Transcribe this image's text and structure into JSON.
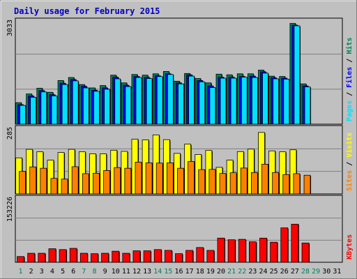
{
  "chart_data": [
    {
      "type": "bar",
      "title": "Daily usage for February 2015",
      "categories": [
        "1",
        "2",
        "3",
        "4",
        "5",
        "6",
        "7",
        "8",
        "9",
        "10",
        "11",
        "12",
        "13",
        "14",
        "15",
        "16",
        "17",
        "18",
        "19",
        "20",
        "21",
        "22",
        "23",
        "24",
        "25",
        "26",
        "27",
        "28",
        "29",
        "30",
        "31"
      ],
      "weekend_days": [
        1,
        7,
        8,
        14,
        15,
        21,
        22,
        28,
        29
      ],
      "ymax_label": "3033",
      "ylabel_parts": [
        "Pages",
        " / ",
        "Files",
        " / ",
        "Hits"
      ],
      "series": [
        {
          "name": "Hits",
          "color": "#00805c",
          "values": [
            640,
            900,
            1070,
            950,
            1300,
            1390,
            1180,
            1080,
            1150,
            1460,
            1230,
            1480,
            1460,
            1500,
            1570,
            1280,
            1510,
            1360,
            1230,
            1490,
            1470,
            1500,
            1500,
            1610,
            1430,
            1420,
            3000,
            1200,
            null,
            null,
            null
          ]
        },
        {
          "name": "Files",
          "color": "#0000ff",
          "values": [
            580,
            840,
            1000,
            880,
            1220,
            1330,
            1130,
            1010,
            1080,
            1400,
            1160,
            1420,
            1390,
            1440,
            1500,
            1230,
            1470,
            1300,
            1140,
            1400,
            1400,
            1420,
            1430,
            1560,
            1380,
            1370,
            2950,
            1140,
            null,
            null,
            null
          ]
        },
        {
          "name": "Pages",
          "color": "#00e0ff",
          "values": [
            560,
            800,
            960,
            840,
            1180,
            1290,
            1080,
            980,
            1040,
            1350,
            1120,
            1390,
            1360,
            1420,
            1480,
            1200,
            1430,
            1260,
            1090,
            1370,
            1370,
            1400,
            1390,
            1520,
            1350,
            1340,
            2930,
            1110,
            null,
            null,
            null
          ]
        }
      ]
    },
    {
      "type": "bar",
      "ymax_label": "285",
      "ylabel_parts": [
        "Sites",
        " / ",
        "Visits"
      ],
      "series": [
        {
          "name": "Visits",
          "color": "#ffff00",
          "values": [
            160,
            198,
            187,
            150,
            184,
            198,
            187,
            178,
            178,
            194,
            189,
            243,
            240,
            262,
            241,
            180,
            221,
            175,
            193,
            118,
            150,
            188,
            199,
            273,
            191,
            187,
            196,
            null,
            null,
            null,
            null
          ]
        },
        {
          "name": "Sites",
          "color": "#ff8000",
          "values": [
            100,
            120,
            114,
            69,
            66,
            121,
            90,
            92,
            104,
            117,
            114,
            141,
            138,
            137,
            138,
            114,
            144,
            108,
            109,
            91,
            94,
            115,
            95,
            132,
            95,
            86,
            90,
            83,
            null,
            null,
            null
          ]
        }
      ]
    },
    {
      "type": "bar",
      "ymax_label": "153226",
      "ylabel_parts": [
        "KBytes"
      ],
      "series": [
        {
          "name": "KBytes",
          "color": "#ff0000",
          "values": [
            14000,
            22000,
            22000,
            33000,
            31000,
            34000,
            22000,
            21000,
            22000,
            27000,
            22000,
            28000,
            28000,
            31000,
            29000,
            21000,
            29000,
            36000,
            29000,
            59000,
            55000,
            56000,
            50000,
            59000,
            49000,
            84000,
            93000,
            47000,
            null,
            null,
            null
          ]
        }
      ]
    }
  ]
}
